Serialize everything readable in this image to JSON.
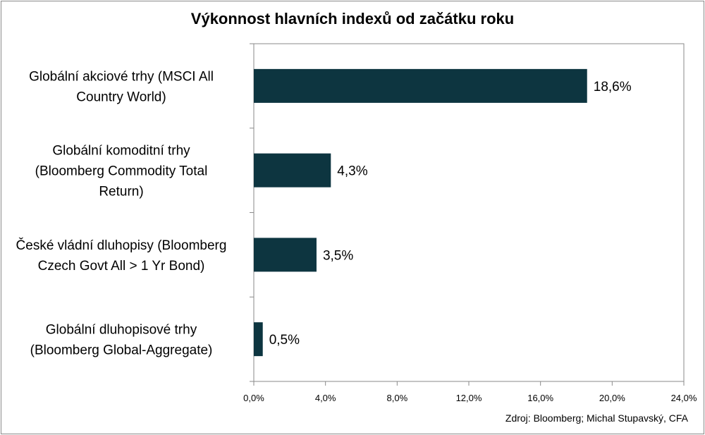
{
  "chart_data": {
    "type": "bar",
    "orientation": "horizontal",
    "title": "Výkonnost hlavních indexů od začátku roku",
    "categories": [
      "Globální akciové trhy (MSCI All Country World)",
      "Globální komoditní trhy (Bloomberg Commodity Total Return)",
      "České vládní dluhopisy (Bloomberg Czech Govt All > 1 Yr Bond)",
      "Globální dluhopisové trhy (Bloomberg Global-Aggregate)"
    ],
    "category_lines": [
      [
        "Globální akciové trhy (MSCI All",
        "Country World)"
      ],
      [
        "Globální komoditní trhy",
        "(Bloomberg Commodity Total",
        "Return)"
      ],
      [
        "České vládní dluhopisy (Bloomberg",
        "Czech Govt All > 1 Yr Bond)"
      ],
      [
        "Globální dluhopisové trhy",
        "(Bloomberg Global-Aggregate)"
      ]
    ],
    "values": [
      18.6,
      4.3,
      3.5,
      0.5
    ],
    "value_labels": [
      "18,6%",
      "4,3%",
      "3,5%",
      "0,5%"
    ],
    "xlim": [
      0,
      24
    ],
    "ticks": [
      0,
      4,
      8,
      12,
      16,
      20,
      24
    ],
    "tick_labels": [
      "0,0%",
      "4,0%",
      "8,0%",
      "12,0%",
      "16,0%",
      "20,0%",
      "24,0%"
    ],
    "xlabel": "",
    "ylabel": "",
    "grid": false,
    "legend": "none",
    "bar_color": "#0d3540",
    "source": "Zdroj: Bloomberg; Michal Stupavský, CFA"
  }
}
